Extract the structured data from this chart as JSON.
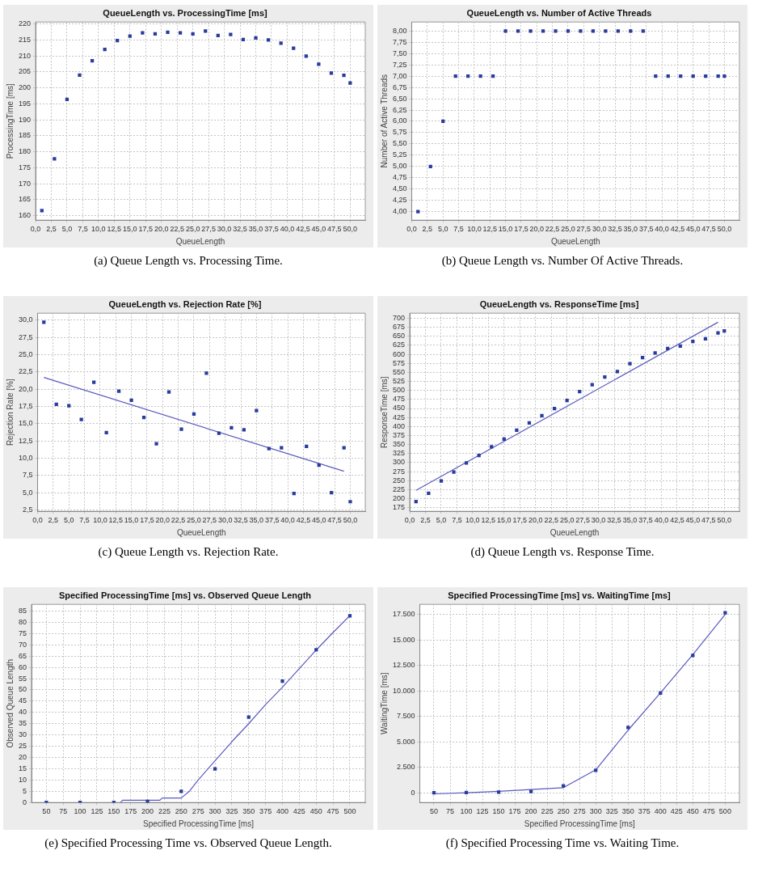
{
  "chart_data": [
    {
      "type": "scatter",
      "title": "QueueLength vs. ProcessingTime [ms]",
      "xlabel": "QueueLength",
      "ylabel": "ProcessingTime [ms]",
      "annotations": [
        "(a) Queue Length vs. Processing Time."
      ],
      "grid": true,
      "legend": false,
      "marker": "square",
      "x": [
        1,
        3,
        5,
        7,
        9,
        11,
        13,
        15,
        17,
        19,
        21,
        23,
        25,
        27,
        29,
        31,
        33,
        35,
        37,
        39,
        41,
        43,
        45,
        47,
        49,
        50
      ],
      "series": [
        {
          "type": "scatter",
          "color": "#283c9c",
          "values": [
            161.6,
            177.8,
            196.4,
            204.0,
            208.5,
            212.0,
            214.8,
            216.2,
            217.2,
            216.9,
            217.4,
            217.2,
            216.9,
            217.8,
            216.4,
            216.7,
            215.1,
            215.6,
            215.0,
            214.0,
            212.4,
            209.9,
            207.4,
            204.6,
            203.9,
            201.5
          ]
        }
      ],
      "xlim": [
        0,
        52.4
      ],
      "ylim": [
        158.6,
        220.6
      ],
      "xticks": [
        {
          "value": 0,
          "label": "0,0"
        },
        {
          "value": 2.5,
          "label": "2,5"
        },
        {
          "value": 5,
          "label": "5,0"
        },
        {
          "value": 7.5,
          "label": "7,5"
        },
        {
          "value": 10,
          "label": "10,0"
        },
        {
          "value": 12.5,
          "label": "12,5"
        },
        {
          "value": 15,
          "label": "15,0"
        },
        {
          "value": 17.5,
          "label": "17,5"
        },
        {
          "value": 20,
          "label": "20,0"
        },
        {
          "value": 22.5,
          "label": "22,5"
        },
        {
          "value": 25,
          "label": "25,0"
        },
        {
          "value": 27.5,
          "label": "27,5"
        },
        {
          "value": 30,
          "label": "30,0"
        },
        {
          "value": 32.5,
          "label": "32,5"
        },
        {
          "value": 35,
          "label": "35,0"
        },
        {
          "value": 37.5,
          "label": "37,5"
        },
        {
          "value": 40,
          "label": "40,0"
        },
        {
          "value": 42.5,
          "label": "42,5"
        },
        {
          "value": 45,
          "label": "45,0"
        },
        {
          "value": 47.5,
          "label": "47,5"
        },
        {
          "value": 50,
          "label": "50,0"
        }
      ],
      "yticks": [
        160,
        165,
        170,
        175,
        180,
        185,
        190,
        195,
        200,
        205,
        210,
        215,
        220
      ]
    },
    {
      "type": "scatter",
      "title": "QueueLength vs. Number of Active Threads",
      "xlabel": "QueueLength",
      "ylabel": "Number of Active Threads",
      "annotations": [
        "(b) Queue Length vs. Number Of Active Threads."
      ],
      "grid": true,
      "legend": false,
      "marker": "square",
      "x": [
        1,
        3,
        5,
        7,
        9,
        11,
        13,
        15,
        17,
        19,
        21,
        23,
        25,
        27,
        29,
        31,
        33,
        35,
        37,
        39,
        41,
        43,
        45,
        47,
        49,
        50
      ],
      "series": [
        {
          "type": "scatter",
          "color": "#283c9c",
          "values": [
            4,
            5,
            6,
            7,
            7,
            7,
            7,
            8,
            8,
            8,
            8,
            8,
            8,
            8,
            8,
            8,
            8,
            8,
            8,
            7,
            7,
            7,
            7,
            7,
            7,
            7
          ]
        }
      ],
      "xlim": [
        0,
        52.4
      ],
      "ylim": [
        3.81,
        8.2
      ],
      "xticks": [
        {
          "value": 0,
          "label": "0,0"
        },
        {
          "value": 2.5,
          "label": "2,5"
        },
        {
          "value": 5,
          "label": "5,0"
        },
        {
          "value": 7.5,
          "label": "7,5"
        },
        {
          "value": 10,
          "label": "10,0"
        },
        {
          "value": 12.5,
          "label": "12,5"
        },
        {
          "value": 15,
          "label": "15,0"
        },
        {
          "value": 17.5,
          "label": "17,5"
        },
        {
          "value": 20,
          "label": "20,0"
        },
        {
          "value": 22.5,
          "label": "22,5"
        },
        {
          "value": 25,
          "label": "25,0"
        },
        {
          "value": 27.5,
          "label": "27,5"
        },
        {
          "value": 30,
          "label": "30,0"
        },
        {
          "value": 32.5,
          "label": "32,5"
        },
        {
          "value": 35,
          "label": "35,0"
        },
        {
          "value": 37.5,
          "label": "37,5"
        },
        {
          "value": 40,
          "label": "40,0"
        },
        {
          "value": 42.5,
          "label": "42,5"
        },
        {
          "value": 45,
          "label": "45,0"
        },
        {
          "value": 47.5,
          "label": "47,5"
        },
        {
          "value": 50,
          "label": "50,0"
        }
      ],
      "yticks": [
        {
          "value": 4,
          "label": "4,00"
        },
        {
          "value": 4.25,
          "label": "4,25"
        },
        {
          "value": 4.5,
          "label": "4,50"
        },
        {
          "value": 4.75,
          "label": "4,75"
        },
        {
          "value": 5,
          "label": "5,00"
        },
        {
          "value": 5.25,
          "label": "5,25"
        },
        {
          "value": 5.5,
          "label": "5,50"
        },
        {
          "value": 5.75,
          "label": "5,75"
        },
        {
          "value": 6,
          "label": "6,00"
        },
        {
          "value": 6.25,
          "label": "6,25"
        },
        {
          "value": 6.5,
          "label": "6,50"
        },
        {
          "value": 6.75,
          "label": "6,75"
        },
        {
          "value": 7,
          "label": "7,00"
        },
        {
          "value": 7.25,
          "label": "7,25"
        },
        {
          "value": 7.5,
          "label": "7,50"
        },
        {
          "value": 7.75,
          "label": "7,75"
        },
        {
          "value": 8,
          "label": "8,00"
        }
      ]
    },
    {
      "type": "scatter",
      "title": "QueueLength vs. Rejection Rate [%]",
      "xlabel": "QueueLength",
      "ylabel": "Rejection Rate [%]",
      "annotations": [
        "(c) Queue Length vs. Rejection Rate."
      ],
      "grid": true,
      "legend": false,
      "marker": "square",
      "x": [
        1,
        3,
        5,
        7,
        9,
        11,
        13,
        15,
        17,
        19,
        21,
        23,
        25,
        27,
        29,
        31,
        33,
        35,
        37,
        39,
        41,
        43,
        45,
        47,
        49,
        50
      ],
      "series": [
        {
          "type": "scatter",
          "color": "#283c9c",
          "values": [
            29.7,
            17.8,
            17.6,
            15.6,
            21.0,
            13.7,
            19.7,
            18.4,
            15.9,
            12.1,
            19.6,
            14.2,
            16.4,
            22.3,
            13.6,
            14.4,
            14.1,
            16.9,
            11.4,
            11.5,
            4.9,
            11.7,
            9.0,
            5.0,
            11.5,
            3.7
          ]
        },
        {
          "type": "line",
          "color": "#5a5ac0",
          "marker": "none",
          "x": [
            1,
            49
          ],
          "values": [
            21.7,
            8.1
          ]
        }
      ],
      "xlim": [
        0,
        52.4
      ],
      "ylim": [
        2.3,
        31
      ],
      "xticks": [
        {
          "value": 0,
          "label": "0,0"
        },
        {
          "value": 2.5,
          "label": "2,5"
        },
        {
          "value": 5,
          "label": "5,0"
        },
        {
          "value": 7.5,
          "label": "7,5"
        },
        {
          "value": 10,
          "label": "10,0"
        },
        {
          "value": 12.5,
          "label": "12,5"
        },
        {
          "value": 15,
          "label": "15,0"
        },
        {
          "value": 17.5,
          "label": "17,5"
        },
        {
          "value": 20,
          "label": "20,0"
        },
        {
          "value": 22.5,
          "label": "22,5"
        },
        {
          "value": 25,
          "label": "25,0"
        },
        {
          "value": 27.5,
          "label": "27,5"
        },
        {
          "value": 30,
          "label": "30,0"
        },
        {
          "value": 32.5,
          "label": "32,5"
        },
        {
          "value": 35,
          "label": "35,0"
        },
        {
          "value": 37.5,
          "label": "37,5"
        },
        {
          "value": 40,
          "label": "40,0"
        },
        {
          "value": 42.5,
          "label": "42,5"
        },
        {
          "value": 45,
          "label": "45,0"
        },
        {
          "value": 47.5,
          "label": "47,5"
        },
        {
          "value": 50,
          "label": "50,0"
        }
      ],
      "yticks": [
        {
          "value": 2.5,
          "label": "2,5"
        },
        {
          "value": 5,
          "label": "5,0"
        },
        {
          "value": 7.5,
          "label": "7,5"
        },
        {
          "value": 10,
          "label": "10,0"
        },
        {
          "value": 12.5,
          "label": "12,5"
        },
        {
          "value": 15,
          "label": "15,0"
        },
        {
          "value": 17.5,
          "label": "17,5"
        },
        {
          "value": 20,
          "label": "20,0"
        },
        {
          "value": 22.5,
          "label": "22,5"
        },
        {
          "value": 25,
          "label": "25,0"
        },
        {
          "value": 27.5,
          "label": "27,5"
        },
        {
          "value": 30,
          "label": "30,0"
        }
      ]
    },
    {
      "type": "scatter",
      "title": "QueueLength vs. ResponseTime [ms]",
      "xlabel": "QueueLength",
      "ylabel": "ResponseTime [ms]",
      "annotations": [
        "(d) Queue Length vs. Response Time."
      ],
      "grid": true,
      "legend": false,
      "marker": "square",
      "x": [
        1,
        3,
        5,
        7,
        9,
        11,
        13,
        15,
        17,
        19,
        21,
        23,
        25,
        27,
        29,
        31,
        33,
        35,
        37,
        39,
        41,
        43,
        45,
        47,
        49,
        50
      ],
      "series": [
        {
          "type": "scatter",
          "color": "#283c9c",
          "values": [
            192,
            215,
            249,
            274,
            299,
            320,
            344,
            365,
            390,
            410,
            430,
            450,
            472,
            497,
            516,
            537,
            552,
            574,
            591,
            604,
            616,
            623,
            636,
            643,
            659,
            665
          ]
        },
        {
          "type": "line",
          "color": "#5a5ac0",
          "marker": "none",
          "x": [
            1,
            49
          ],
          "values": [
            223,
            689
          ]
        }
      ],
      "xlim": [
        0,
        52.4
      ],
      "ylim": [
        165,
        714
      ],
      "xticks": [
        {
          "value": 0,
          "label": "0,0"
        },
        {
          "value": 2.5,
          "label": "2,5"
        },
        {
          "value": 5,
          "label": "5,0"
        },
        {
          "value": 7.5,
          "label": "7,5"
        },
        {
          "value": 10,
          "label": "10,0"
        },
        {
          "value": 12.5,
          "label": "12,5"
        },
        {
          "value": 15,
          "label": "15,0"
        },
        {
          "value": 17.5,
          "label": "17,5"
        },
        {
          "value": 20,
          "label": "20,0"
        },
        {
          "value": 22.5,
          "label": "22,5"
        },
        {
          "value": 25,
          "label": "25,0"
        },
        {
          "value": 27.5,
          "label": "27,5"
        },
        {
          "value": 30,
          "label": "30,0"
        },
        {
          "value": 32.5,
          "label": "32,5"
        },
        {
          "value": 35,
          "label": "35,0"
        },
        {
          "value": 37.5,
          "label": "37,5"
        },
        {
          "value": 40,
          "label": "40,0"
        },
        {
          "value": 42.5,
          "label": "42,5"
        },
        {
          "value": 45,
          "label": "45,0"
        },
        {
          "value": 47.5,
          "label": "47,5"
        },
        {
          "value": 50,
          "label": "50,0"
        }
      ],
      "yticks": [
        175,
        200,
        225,
        250,
        275,
        300,
        325,
        350,
        375,
        400,
        425,
        450,
        475,
        500,
        525,
        550,
        575,
        600,
        625,
        650,
        675,
        700
      ]
    },
    {
      "type": "scatter",
      "title": "Specified ProcessingTime [ms] vs. Observed Queue Length",
      "xlabel": "Specified ProcessingTime [ms]",
      "ylabel": "Observed Queue Length",
      "annotations": [
        "(e) Specified Processing Time vs. Observed Queue Length."
      ],
      "grid": true,
      "legend": false,
      "marker": "square",
      "x": [
        50,
        100,
        150,
        200,
        250,
        300,
        350,
        400,
        450,
        500
      ],
      "series": [
        {
          "type": "scatter",
          "color": "#283c9c",
          "values": [
            0,
            0,
            0,
            0.5,
            5,
            14.9,
            37.9,
            53.9,
            67.8,
            82.9
          ]
        },
        {
          "type": "line",
          "color": "#5a5ac0",
          "marker": "none",
          "x": [
            160,
            163,
            218,
            222,
            250,
            262,
            275,
            300,
            325,
            350,
            375,
            400,
            425,
            450,
            475,
            500
          ],
          "values": [
            0,
            1,
            1,
            2,
            2,
            5,
            10,
            18.5,
            27,
            35,
            43.5,
            51.2,
            59.5,
            67.7,
            75.5,
            83
          ]
        }
      ],
      "xlim": [
        28,
        522.8
      ],
      "ylim": [
        0,
        88
      ],
      "xticks": [
        50,
        75,
        100,
        125,
        150,
        175,
        200,
        225,
        250,
        275,
        300,
        325,
        350,
        375,
        400,
        425,
        450,
        475,
        500
      ],
      "yticks": [
        0,
        5,
        10,
        15,
        20,
        25,
        30,
        35,
        40,
        45,
        50,
        55,
        60,
        65,
        70,
        75,
        80,
        85
      ]
    },
    {
      "type": "scatter",
      "title": "Specified ProcessingTime [ms] vs. WaitingTime [ms]",
      "xlabel": "Specified ProcessingTime [ms]",
      "ylabel": "WaitingTime [ms]",
      "annotations": [
        "(f) Specified Processing Time vs. Waiting Time."
      ],
      "grid": true,
      "legend": false,
      "marker": "square",
      "x": [
        50,
        100,
        150,
        200,
        250,
        300,
        350,
        400,
        450,
        500
      ],
      "series": [
        {
          "type": "scatter",
          "color": "#283c9c",
          "values": [
            0,
            20,
            50,
            110,
            680,
            2200,
            6400,
            9780,
            13470,
            17670
          ]
        },
        {
          "type": "line",
          "color": "#5a5ac0",
          "marker": "none",
          "x": [
            50,
            100,
            150,
            200,
            250,
            300,
            350,
            400,
            450,
            500
          ],
          "values": [
            -110,
            0,
            140,
            310,
            500,
            2250,
            6140,
            9800,
            13550,
            17500
          ]
        }
      ],
      "xlim": [
        28.2,
        522
      ],
      "ylim": [
        -960,
        18490
      ],
      "xticks": [
        50,
        75,
        100,
        125,
        150,
        175,
        200,
        225,
        250,
        275,
        300,
        325,
        350,
        375,
        400,
        425,
        450,
        475,
        500
      ],
      "yticks": [
        0,
        {
          "value": 2500,
          "label": "2.500"
        },
        {
          "value": 5000,
          "label": "5.000"
        },
        {
          "value": 7500,
          "label": "7.500"
        },
        {
          "value": 10000,
          "label": "10.000"
        },
        {
          "value": 12500,
          "label": "12.500"
        },
        {
          "value": 15000,
          "label": "15.000"
        },
        {
          "value": 17500,
          "label": "17.500"
        }
      ]
    }
  ]
}
